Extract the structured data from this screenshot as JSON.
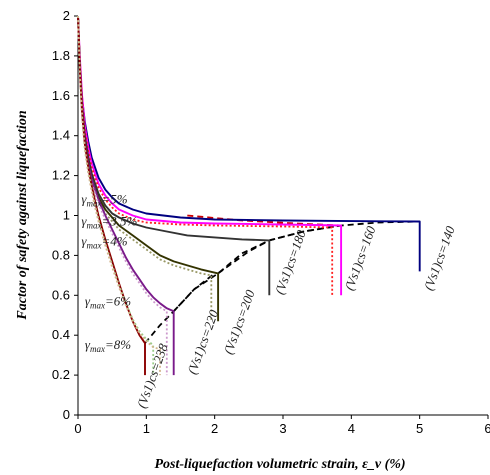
{
  "chart_data": {
    "type": "line",
    "title": "",
    "xlabel": "Post-liquefaction volumetric strain, ε_v (%)",
    "ylabel": "Factor of safety against liquefaction",
    "xlim": [
      0,
      6
    ],
    "ylim": [
      0,
      2
    ],
    "x_ticks": [
      "0",
      "1",
      "2",
      "3",
      "4",
      "5",
      "6"
    ],
    "y_ticks": [
      "0",
      "0.2",
      "0.4",
      "0.6",
      "0.8",
      "1",
      "1.2",
      "1.4",
      "1.6",
      "1.8",
      "2"
    ],
    "grid": false,
    "series": [
      {
        "label": "(Vs1)cs=140",
        "color": "#000080",
        "style": "solid",
        "end": 5.0,
        "x": [
          0,
          0.02,
          0.05,
          0.1,
          0.15,
          0.2,
          0.3,
          0.4,
          0.5,
          0.6,
          0.8,
          1.0,
          1.5,
          2.0,
          3.0,
          4.0,
          5.0,
          5.0
        ],
        "y": [
          2.0,
          1.8,
          1.62,
          1.47,
          1.37,
          1.29,
          1.19,
          1.13,
          1.09,
          1.06,
          1.03,
          1.01,
          0.99,
          0.98,
          0.975,
          0.972,
          0.97,
          0.72
        ]
      },
      {
        "label": "(Vs1)cs=160",
        "color": "#ff00ff",
        "style": "solid",
        "end": 3.85,
        "x": [
          0,
          0.03,
          0.06,
          0.1,
          0.15,
          0.2,
          0.3,
          0.4,
          0.5,
          0.6,
          0.8,
          1.0,
          1.5,
          2.0,
          3.0,
          3.85,
          3.85
        ],
        "y": [
          2.0,
          1.78,
          1.6,
          1.45,
          1.34,
          1.26,
          1.16,
          1.1,
          1.06,
          1.03,
          1.0,
          0.98,
          0.965,
          0.96,
          0.955,
          0.95,
          0.6
        ]
      },
      {
        "label": "(Vs1)cs=160",
        "color": "#ff2020",
        "style": "dotted",
        "end": 3.72,
        "x": [
          0,
          0.03,
          0.06,
          0.1,
          0.15,
          0.2,
          0.3,
          0.4,
          0.5,
          0.6,
          0.8,
          1.0,
          1.5,
          2.0,
          3.0,
          3.72,
          3.72
        ],
        "y": [
          2.0,
          1.76,
          1.58,
          1.43,
          1.32,
          1.24,
          1.14,
          1.08,
          1.04,
          1.01,
          0.98,
          0.965,
          0.955,
          0.95,
          0.945,
          0.94,
          0.6
        ]
      },
      {
        "label": "(Vs1)cs=180",
        "color": "#333333",
        "style": "solid",
        "end": 2.8,
        "x": [
          0,
          0.03,
          0.06,
          0.1,
          0.15,
          0.2,
          0.3,
          0.4,
          0.5,
          0.6,
          0.8,
          1.0,
          1.3,
          1.6,
          2.0,
          2.4,
          2.8,
          2.8
        ],
        "y": [
          2.0,
          1.74,
          1.55,
          1.4,
          1.29,
          1.21,
          1.11,
          1.05,
          1.01,
          0.99,
          0.96,
          0.94,
          0.92,
          0.9,
          0.89,
          0.88,
          0.875,
          0.6
        ]
      },
      {
        "label": "(Vs1)cs=200",
        "color": "#333300",
        "style": "solid",
        "end": 2.05,
        "x": [
          0,
          0.03,
          0.06,
          0.1,
          0.15,
          0.2,
          0.3,
          0.4,
          0.5,
          0.6,
          0.8,
          1.0,
          1.2,
          1.4,
          1.6,
          1.8,
          2.05,
          2.05
        ],
        "y": [
          2.0,
          1.72,
          1.52,
          1.37,
          1.26,
          1.18,
          1.09,
          1.03,
          0.99,
          0.95,
          0.9,
          0.85,
          0.8,
          0.77,
          0.75,
          0.73,
          0.71,
          0.47
        ]
      },
      {
        "label": "(Vs1)cs=200",
        "color": "#999966",
        "style": "dotted",
        "end": 1.95,
        "x": [
          0,
          0.03,
          0.06,
          0.1,
          0.15,
          0.2,
          0.3,
          0.4,
          0.5,
          0.6,
          0.8,
          1.0,
          1.2,
          1.4,
          1.6,
          1.8,
          1.95,
          1.95
        ],
        "y": [
          2.0,
          1.7,
          1.5,
          1.35,
          1.24,
          1.16,
          1.07,
          1.01,
          0.97,
          0.93,
          0.88,
          0.83,
          0.78,
          0.75,
          0.73,
          0.71,
          0.7,
          0.47
        ]
      },
      {
        "label": "(Vs1)cs=220",
        "color": "#7a1a8a",
        "style": "solid",
        "end": 1.4,
        "x": [
          0,
          0.03,
          0.06,
          0.1,
          0.15,
          0.2,
          0.3,
          0.4,
          0.5,
          0.6,
          0.7,
          0.8,
          0.9,
          1.0,
          1.1,
          1.2,
          1.3,
          1.4,
          1.4
        ],
        "y": [
          2.0,
          1.72,
          1.52,
          1.37,
          1.26,
          1.18,
          1.08,
          1.0,
          0.93,
          0.86,
          0.79,
          0.73,
          0.68,
          0.63,
          0.59,
          0.56,
          0.535,
          0.52,
          0.2
        ]
      },
      {
        "label": "(Vs1)cs=220",
        "color": "#cc99cc",
        "style": "dotted",
        "end": 1.3,
        "x": [
          0,
          0.03,
          0.06,
          0.1,
          0.15,
          0.2,
          0.3,
          0.4,
          0.5,
          0.6,
          0.7,
          0.8,
          0.9,
          1.0,
          1.1,
          1.2,
          1.3,
          1.3
        ],
        "y": [
          2.0,
          1.7,
          1.5,
          1.35,
          1.24,
          1.16,
          1.06,
          0.98,
          0.91,
          0.84,
          0.77,
          0.71,
          0.66,
          0.61,
          0.57,
          0.54,
          0.52,
          0.2
        ]
      },
      {
        "label": "(Vs1)cs=238",
        "color": "#8b0000",
        "style": "solid",
        "end": 0.98,
        "x": [
          0,
          0.03,
          0.06,
          0.1,
          0.15,
          0.2,
          0.25,
          0.3,
          0.4,
          0.5,
          0.6,
          0.7,
          0.8,
          0.9,
          0.98,
          0.98
        ],
        "y": [
          2.0,
          1.72,
          1.52,
          1.36,
          1.24,
          1.15,
          1.07,
          1.0,
          0.88,
          0.77,
          0.66,
          0.56,
          0.47,
          0.4,
          0.36,
          0.2
        ]
      },
      {
        "label": "(Vs1)cs=238",
        "color": "#99cc88",
        "style": "dotted",
        "end": 1.1,
        "x": [
          0,
          0.03,
          0.06,
          0.1,
          0.15,
          0.2,
          0.25,
          0.3,
          0.4,
          0.5,
          0.6,
          0.7,
          0.8,
          0.9,
          1.0,
          1.1,
          1.1
        ],
        "y": [
          2.0,
          1.7,
          1.5,
          1.34,
          1.22,
          1.13,
          1.05,
          0.98,
          0.86,
          0.75,
          0.65,
          0.56,
          0.48,
          0.42,
          0.38,
          0.35,
          0.2
        ]
      },
      {
        "label": "(Vs1)cs=238",
        "color": "#d2b48c",
        "style": "dotted",
        "end": 1.2,
        "x": [
          0,
          0.03,
          0.06,
          0.1,
          0.15,
          0.2,
          0.25,
          0.3,
          0.4,
          0.5,
          0.6,
          0.7,
          0.8,
          0.9,
          1.0,
          1.1,
          1.2,
          1.2
        ],
        "y": [
          2.0,
          1.69,
          1.49,
          1.33,
          1.21,
          1.12,
          1.04,
          0.97,
          0.85,
          0.74,
          0.64,
          0.55,
          0.47,
          0.41,
          0.37,
          0.34,
          0.33,
          0.2
        ]
      }
    ],
    "gamma_curves": [
      {
        "label": "γmax=8%",
        "color": "#000000",
        "style": "dashed",
        "x": [
          0.98,
          1.2,
          1.4,
          1.7,
          2.0
        ],
        "y": [
          0.36,
          0.45,
          0.52,
          0.63,
          0.71
        ]
      },
      {
        "label": "γmax=6%",
        "color": "#000000",
        "style": "dashed",
        "x": [
          1.4,
          1.7,
          2.05,
          2.4,
          2.8
        ],
        "y": [
          0.52,
          0.63,
          0.71,
          0.81,
          0.875
        ]
      },
      {
        "label": "γmax=4%",
        "color": "#000000",
        "style": "dashed",
        "x": [
          2.05,
          2.5,
          2.8,
          3.3,
          3.85
        ],
        "y": [
          0.71,
          0.82,
          0.875,
          0.92,
          0.95
        ]
      },
      {
        "label": "γmax=3.5%",
        "color": "#000000",
        "style": "dashed",
        "x": [
          2.8,
          3.3,
          3.85,
          4.4,
          5.0
        ],
        "y": [
          0.875,
          0.92,
          0.95,
          0.965,
          0.97
        ]
      },
      {
        "label": "γmax=5%",
        "color": "#cc0000",
        "style": "dashed",
        "x": [
          1.6,
          2.4,
          3.2,
          3.85
        ],
        "y": [
          1.0,
          0.975,
          0.96,
          0.95
        ]
      }
    ],
    "annotations": [
      {
        "sub": "max",
        "text": "=5%",
        "x": 0.05,
        "y": 1.06
      },
      {
        "sub": "max",
        "text": "=3.5%",
        "x": 0.05,
        "y": 0.95
      },
      {
        "sub": "max",
        "text": "=4%",
        "x": 0.05,
        "y": 0.85
      },
      {
        "sub": "max",
        "text": "=6%",
        "x": 0.1,
        "y": 0.55
      },
      {
        "sub": "max",
        "text": "=8%",
        "x": 0.1,
        "y": 0.33
      }
    ],
    "vs_labels": [
      {
        "text": "(Vs1)cs=238",
        "x": 0.98,
        "y": 0.03
      },
      {
        "text": "(Vs1)cs=220",
        "x": 1.72,
        "y": 0.2
      },
      {
        "text": "(Vs1)cs=200",
        "x": 2.25,
        "y": 0.3
      },
      {
        "text": "(Vs1)cs=180",
        "x": 3.0,
        "y": 0.6
      },
      {
        "text": "(Vs1)cs=160",
        "x": 4.02,
        "y": 0.62
      },
      {
        "text": "(Vs1)cs=140",
        "x": 5.18,
        "y": 0.62
      }
    ]
  }
}
